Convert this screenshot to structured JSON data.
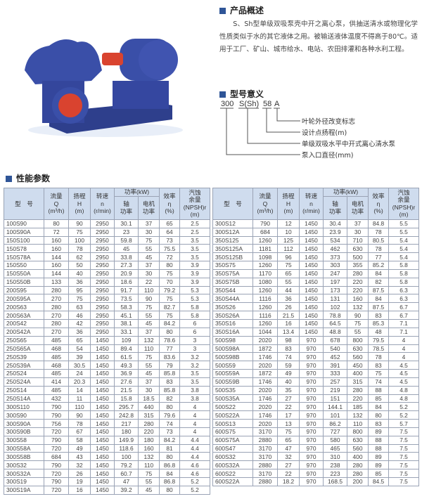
{
  "overview": {
    "title": "产品概述",
    "text": "S、Sh型单级双吸泵壳中开之离心泵，供抽送清水或物理化学性质类似于水的其它液体之用。被输送液体温度不得高于80℃。适用于工厂、矿山、城市给水、电站、农田排灌和各种水利工程。"
  },
  "model_meaning": {
    "title": "型号意义",
    "parts": [
      "300",
      "S(Sh)",
      "58",
      "A"
    ],
    "labels": [
      "叶轮外径改变标志",
      "设计点扬程(m)",
      "单级双吸水平中开式离心清水泵",
      "泵入口直径(mm)"
    ]
  },
  "params": {
    "title": "性能参数",
    "headers": {
      "model": "型　号",
      "flow": [
        "流量",
        "Q",
        "(m³/h)"
      ],
      "head": [
        "扬程",
        "H",
        "(m)"
      ],
      "speed": [
        "转速",
        "n",
        "(r/min)"
      ],
      "power": "功率(kW)",
      "shaft": [
        "轴",
        "功率"
      ],
      "motor": [
        "电机",
        "功率"
      ],
      "eff": [
        "效率",
        "η",
        "(%)"
      ],
      "npsh": [
        "汽蚀",
        "余量",
        "(NPSH)r",
        "(m)"
      ]
    },
    "left_rows": [
      [
        "100S90",
        "80",
        "90",
        "2950",
        "30.1",
        "37",
        "65",
        "2.5"
      ],
      [
        "100S90A",
        "72",
        "75",
        "2950",
        "23",
        "30",
        "64",
        "2.5"
      ],
      [
        "150S100",
        "160",
        "100",
        "2950",
        "59.8",
        "75",
        "73",
        "3.5"
      ],
      [
        "150S78",
        "160",
        "78",
        "2950",
        "45",
        "55",
        "75.5",
        "3.5"
      ],
      [
        "150S78A",
        "144",
        "62",
        "2950",
        "33.8",
        "45",
        "72",
        "3.5"
      ],
      [
        "150S50",
        "160",
        "50",
        "2950",
        "27.3",
        "37",
        "80",
        "3.9"
      ],
      [
        "150S50A",
        "144",
        "40",
        "2950",
        "20.9",
        "30",
        "75",
        "3.9"
      ],
      [
        "150S50B",
        "133",
        "36",
        "2950",
        "18.6",
        "22",
        "70",
        "3.9"
      ],
      [
        "200S95",
        "280",
        "95",
        "2950",
        "91.7",
        "110",
        "79.2",
        "5.3"
      ],
      [
        "200S95A",
        "270",
        "75",
        "2950",
        "73.5",
        "90",
        "75",
        "5.3"
      ],
      [
        "200S63",
        "280",
        "63",
        "2950",
        "58.3",
        "75",
        "82.7",
        "5.8"
      ],
      [
        "200S63A",
        "270",
        "46",
        "2950",
        "45.1",
        "55",
        "75",
        "5.8"
      ],
      [
        "200S42",
        "280",
        "42",
        "2950",
        "38.1",
        "45",
        "84.2",
        "6"
      ],
      [
        "200S42A",
        "270",
        "36",
        "2950",
        "33.1",
        "37",
        "80",
        "6"
      ],
      [
        "250S65",
        "485",
        "65",
        "1450",
        "109",
        "132",
        "78.6",
        "3"
      ],
      [
        "250S65A",
        "468",
        "54",
        "1450",
        "89.4",
        "110",
        "77",
        "3"
      ],
      [
        "250S39",
        "485",
        "39",
        "1450",
        "61.5",
        "75",
        "83.6",
        "3.2"
      ],
      [
        "250S39A",
        "468",
        "30.5",
        "1450",
        "49.3",
        "55",
        "79",
        "3.2"
      ],
      [
        "250S24",
        "485",
        "24",
        "1450",
        "36.9",
        "45",
        "85.8",
        "3.5"
      ],
      [
        "250S24A",
        "414",
        "20.3",
        "1450",
        "27.6",
        "37",
        "83",
        "3.5"
      ],
      [
        "250S14",
        "485",
        "14",
        "1450",
        "21.5",
        "30",
        "85.8",
        "3.8"
      ],
      [
        "250S14A",
        "432",
        "11",
        "1450",
        "15.8",
        "18.5",
        "82",
        "3.8"
      ],
      [
        "300S110",
        "790",
        "110",
        "1450",
        "295.7",
        "440",
        "80",
        "4"
      ],
      [
        "300S90",
        "790",
        "90",
        "1450",
        "242.8",
        "315",
        "79.6",
        "4"
      ],
      [
        "300S90A",
        "756",
        "78",
        "1450",
        "217",
        "280",
        "74",
        "4"
      ],
      [
        "300S90B",
        "720",
        "67",
        "1450",
        "180",
        "220",
        "73",
        "4"
      ],
      [
        "300S58",
        "790",
        "58",
        "1450",
        "149.9",
        "180",
        "84.2",
        "4.4"
      ],
      [
        "300S58A",
        "720",
        "49",
        "1450",
        "118.6",
        "160",
        "81",
        "4.4"
      ],
      [
        "300S58B",
        "684",
        "43",
        "1450",
        "100",
        "132",
        "80",
        "4.4"
      ],
      [
        "300S32",
        "790",
        "32",
        "1450",
        "79.2",
        "110",
        "86.8",
        "4.6"
      ],
      [
        "300S32A",
        "720",
        "26",
        "1450",
        "60.7",
        "75",
        "84",
        "4.6"
      ],
      [
        "300S19",
        "790",
        "19",
        "1450",
        "47",
        "55",
        "86.8",
        "5.2"
      ],
      [
        "300S19A",
        "720",
        "16",
        "1450",
        "39.2",
        "45",
        "80",
        "5.2"
      ]
    ],
    "right_rows": [
      [
        "300S12",
        "790",
        "12",
        "1450",
        "30.4",
        "37",
        "84.8",
        "5.5"
      ],
      [
        "300S12A",
        "684",
        "10",
        "1450",
        "23.9",
        "30",
        "78",
        "5.5"
      ],
      [
        "350S125",
        "1260",
        "125",
        "1450",
        "534",
        "710",
        "80.5",
        "5.4"
      ],
      [
        "350S125A",
        "1181",
        "112",
        "1450",
        "462",
        "630",
        "78",
        "5.4"
      ],
      [
        "350S125B",
        "1098",
        "96",
        "1450",
        "373",
        "500",
        "77",
        "5.4"
      ],
      [
        "350S75",
        "1260",
        "75",
        "1450",
        "303",
        "355",
        "85.2",
        "5.8"
      ],
      [
        "350S75A",
        "1170",
        "65",
        "1450",
        "247",
        "280",
        "84",
        "5.8"
      ],
      [
        "350S75B",
        "1080",
        "55",
        "1450",
        "197",
        "220",
        "82",
        "5.8"
      ],
      [
        "350S44",
        "1260",
        "44",
        "1450",
        "173",
        "220",
        "87.5",
        "6.3"
      ],
      [
        "350S44A",
        "1116",
        "36",
        "1450",
        "131",
        "160",
        "84",
        "6.3"
      ],
      [
        "350S26",
        "1260",
        "26",
        "1450",
        "102",
        "132",
        "87.5",
        "6.7"
      ],
      [
        "350S26A",
        "1116",
        "21.5",
        "1450",
        "78.8",
        "90",
        "83",
        "6.7"
      ],
      [
        "350S16",
        "1260",
        "16",
        "1450",
        "64.5",
        "75",
        "85.3",
        "7.1"
      ],
      [
        "350S16A",
        "1044",
        "13.4",
        "1450",
        "48.8",
        "55",
        "48",
        "7.1"
      ],
      [
        "500S98",
        "2020",
        "98",
        "970",
        "678",
        "800",
        "79.5",
        "4"
      ],
      [
        "500S98A",
        "1872",
        "83",
        "970",
        "540",
        "630",
        "78.5",
        "4"
      ],
      [
        "500S98B",
        "1746",
        "74",
        "970",
        "452",
        "560",
        "78",
        "4"
      ],
      [
        "500S59",
        "2020",
        "59",
        "970",
        "391",
        "450",
        "83",
        "4.5"
      ],
      [
        "500S59A",
        "1872",
        "49",
        "970",
        "333",
        "400",
        "75",
        "4.5"
      ],
      [
        "500S59B",
        "1746",
        "40",
        "970",
        "257",
        "315",
        "74",
        "4.5"
      ],
      [
        "500S35",
        "2020",
        "35",
        "970",
        "219",
        "280",
        "88",
        "4.8"
      ],
      [
        "500S35A",
        "1746",
        "27",
        "970",
        "151",
        "220",
        "85",
        "4.8"
      ],
      [
        "500S22",
        "2020",
        "22",
        "970",
        "144.1",
        "185",
        "84",
        "5.2"
      ],
      [
        "500S22A",
        "1746",
        "17",
        "970",
        "101",
        "132",
        "80",
        "5.2"
      ],
      [
        "500S13",
        "2020",
        "13",
        "970",
        "86.2",
        "110",
        "83",
        "5.7"
      ],
      [
        "600S75",
        "3170",
        "75",
        "970",
        "727",
        "800",
        "89",
        "7.5"
      ],
      [
        "600S75A",
        "2880",
        "65",
        "970",
        "580",
        "630",
        "88",
        "7.5"
      ],
      [
        "600S47",
        "3170",
        "47",
        "970",
        "465",
        "560",
        "88",
        "7.5"
      ],
      [
        "600S32",
        "3170",
        "32",
        "970",
        "310",
        "400",
        "89",
        "7.5"
      ],
      [
        "600S32A",
        "2880",
        "27",
        "970",
        "238",
        "280",
        "89",
        "7.5"
      ],
      [
        "600S22",
        "3170",
        "22",
        "970",
        "223",
        "280",
        "85",
        "7.5"
      ],
      [
        "600S22A",
        "2880",
        "18.2",
        "970",
        "168.5",
        "200",
        "84.5",
        "7.5"
      ]
    ]
  },
  "colors": {
    "accent": "#2f5597",
    "header_bg": "#cfdcee",
    "pump_blue": "#3a4fa0",
    "coupling_red": "#d9432f"
  }
}
